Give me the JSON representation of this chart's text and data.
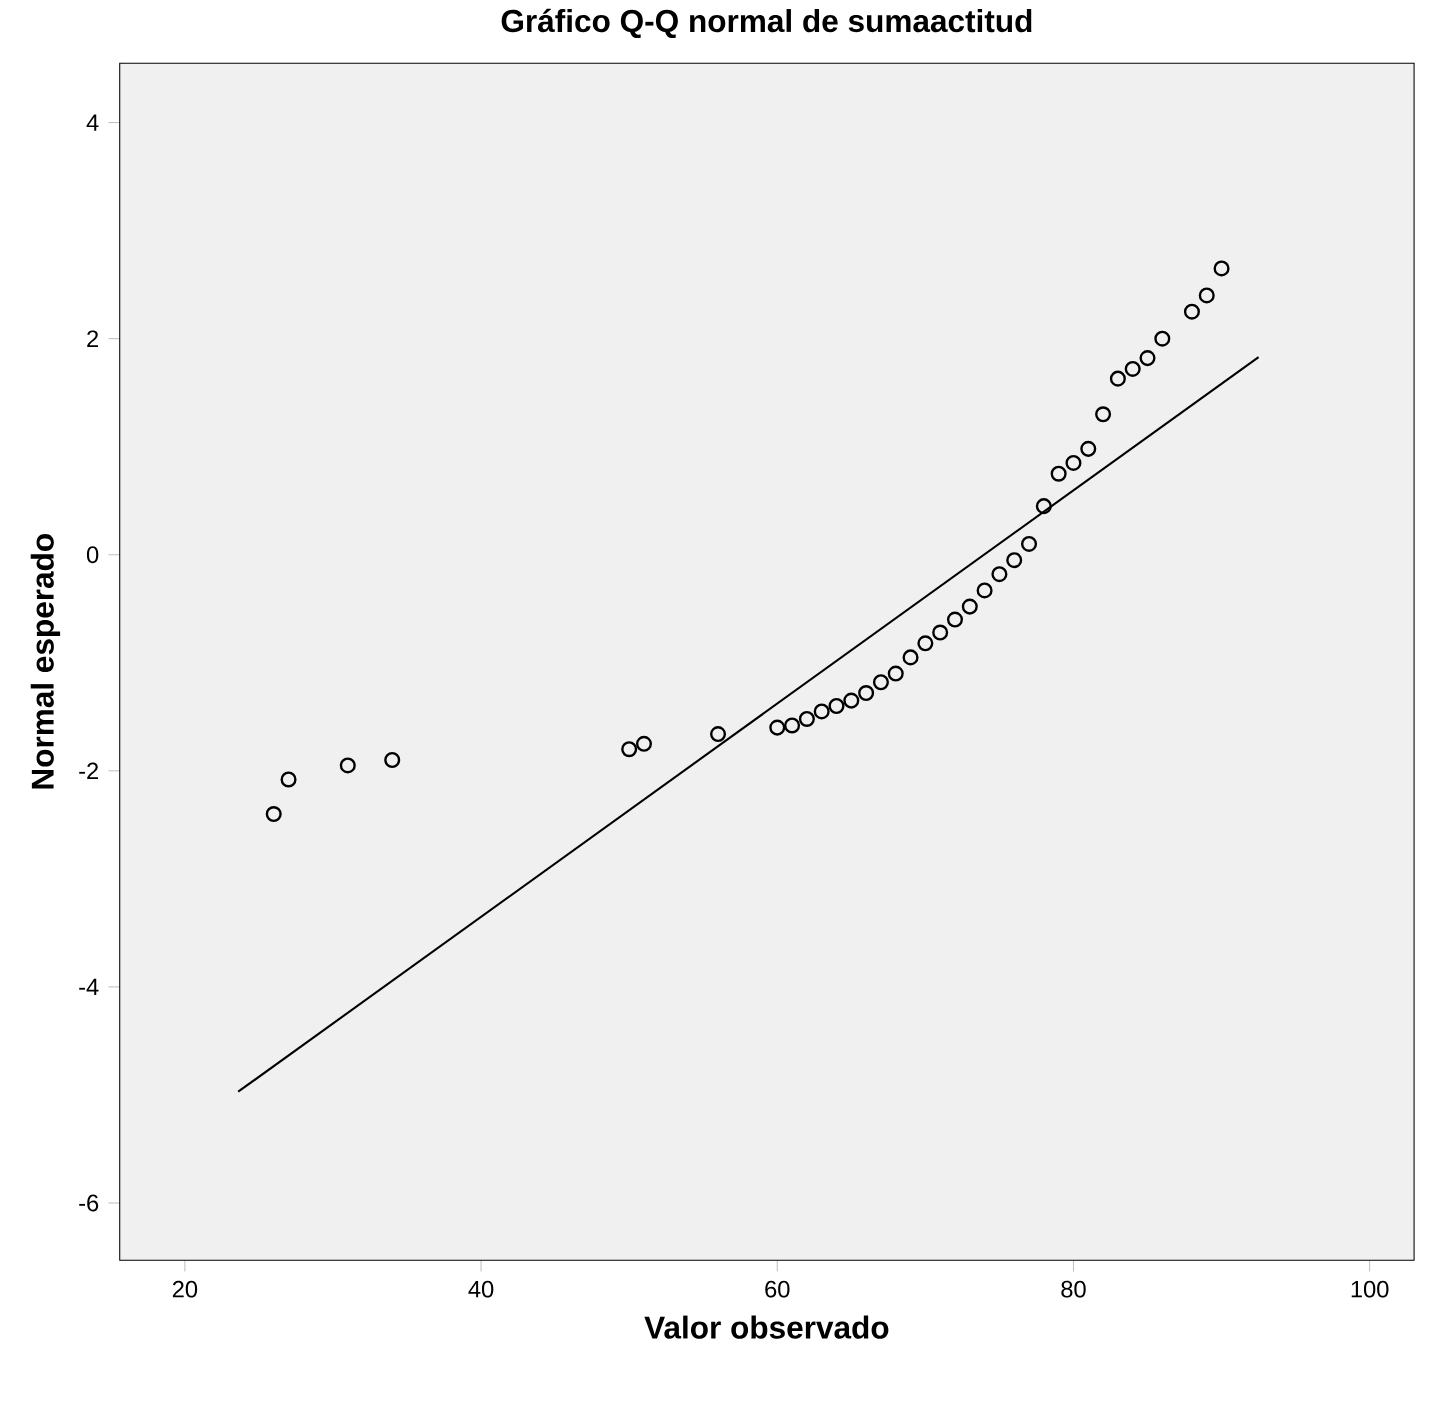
{
  "chart_data": {
    "type": "scatter",
    "title": "Gráfico Q-Q normal de sumaactitud",
    "xlabel": "Valor observado",
    "ylabel": "Normal esperado",
    "xlim": [
      15.6,
      103
    ],
    "ylim": [
      -6.53,
      4.55
    ],
    "xticks": [
      20,
      40,
      60,
      80,
      100
    ],
    "yticks": [
      -6,
      -4,
      -2,
      0,
      2,
      4
    ],
    "grid": false,
    "marker": "circle",
    "series": [
      {
        "color": "#000000",
        "x": [
          26,
          27,
          31,
          34,
          50,
          51,
          56,
          60,
          61,
          62,
          63,
          64,
          65,
          66,
          67,
          68,
          69,
          70,
          71,
          72,
          73,
          74,
          75,
          76,
          77,
          78,
          79,
          80,
          81,
          82,
          83,
          84,
          85,
          86,
          88,
          89,
          90
        ],
        "values": [
          -2.4,
          -2.08,
          -1.95,
          -1.9,
          -1.8,
          -1.75,
          -1.66,
          -1.6,
          -1.58,
          -1.52,
          -1.45,
          -1.4,
          -1.35,
          -1.28,
          -1.18,
          -1.1,
          -0.95,
          -0.82,
          -0.72,
          -0.6,
          -0.48,
          -0.33,
          -0.18,
          -0.05,
          0.1,
          0.45,
          0.75,
          0.85,
          0.98,
          1.3,
          1.63,
          1.72,
          1.82,
          2.0,
          2.25,
          2.4,
          2.65
        ]
      },
      {
        "type": "line",
        "marker": "none",
        "color": "#000000",
        "x": [
          23.6,
          92.5
        ],
        "values": [
          -4.97,
          1.83
        ]
      }
    ]
  }
}
